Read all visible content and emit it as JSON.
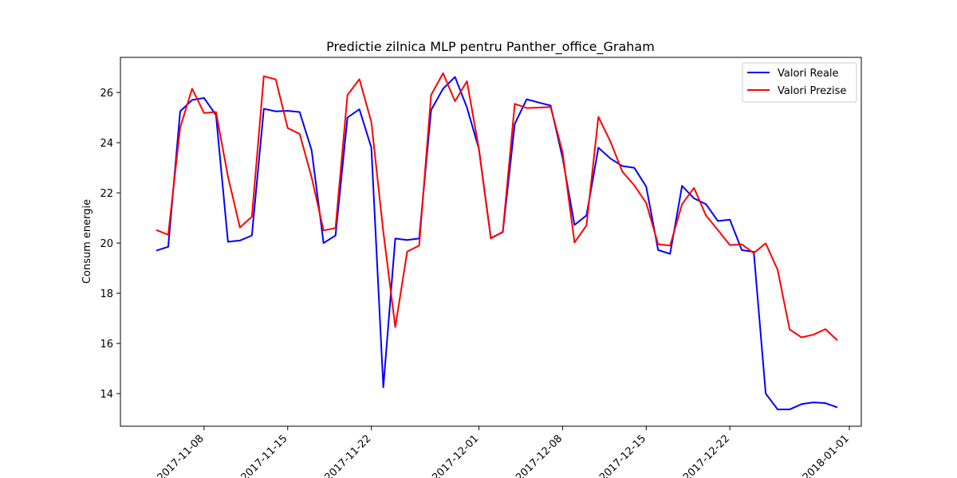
{
  "chart_data": {
    "type": "line",
    "title": "Predictie zilnica MLP pentru Panther_office_Graham",
    "xlabel": "",
    "ylabel": "Consum energie",
    "xlim": [
      "2017-11-01",
      "2018-01-02"
    ],
    "ylim": [
      12.7,
      27.4
    ],
    "x_ticks": [
      "2017-11-08",
      "2017-11-15",
      "2017-11-22",
      "2017-12-01",
      "2017-12-08",
      "2017-12-15",
      "2017-12-22",
      "2018-01-01"
    ],
    "y_ticks": [
      14,
      16,
      18,
      20,
      22,
      24,
      26
    ],
    "grid": false,
    "legend_position": "top-right",
    "x": [
      "2017-11-04",
      "2017-11-05",
      "2017-11-06",
      "2017-11-07",
      "2017-11-08",
      "2017-11-09",
      "2017-11-10",
      "2017-11-11",
      "2017-11-12",
      "2017-11-13",
      "2017-11-14",
      "2017-11-15",
      "2017-11-16",
      "2017-11-17",
      "2017-11-18",
      "2017-11-19",
      "2017-11-20",
      "2017-11-21",
      "2017-11-22",
      "2017-11-23",
      "2017-11-24",
      "2017-11-25",
      "2017-11-26",
      "2017-11-27",
      "2017-11-28",
      "2017-11-29",
      "2017-11-30",
      "2017-12-01",
      "2017-12-02",
      "2017-12-03",
      "2017-12-04",
      "2017-12-05",
      "2017-12-06",
      "2017-12-07",
      "2017-12-08",
      "2017-12-09",
      "2017-12-10",
      "2017-12-11",
      "2017-12-12",
      "2017-12-13",
      "2017-12-14",
      "2017-12-15",
      "2017-12-16",
      "2017-12-17",
      "2017-12-18",
      "2017-12-19",
      "2017-12-20",
      "2017-12-21",
      "2017-12-22",
      "2017-12-23",
      "2017-12-24",
      "2017-12-25",
      "2017-12-26",
      "2017-12-27",
      "2017-12-28",
      "2017-12-29",
      "2017-12-30",
      "2017-12-31"
    ],
    "series": [
      {
        "name": "Valori Reale",
        "color": "#0000ff",
        "values": [
          19.7,
          19.85,
          25.25,
          25.7,
          25.78,
          25.1,
          20.05,
          20.1,
          20.3,
          25.35,
          25.25,
          25.27,
          25.22,
          23.7,
          20.0,
          20.3,
          25.0,
          25.33,
          23.8,
          14.25,
          20.18,
          20.12,
          20.18,
          25.3,
          26.15,
          26.62,
          25.4,
          23.75,
          20.2,
          20.43,
          24.75,
          25.73,
          25.6,
          25.48,
          23.4,
          20.72,
          21.1,
          23.8,
          23.37,
          23.07,
          23.0,
          22.25,
          19.72,
          19.57,
          22.28,
          21.78,
          21.55,
          20.88,
          20.93,
          19.72,
          19.65,
          14.0,
          13.37,
          13.37,
          13.58,
          13.65,
          13.62,
          13.45
        ]
      },
      {
        "name": "Valori Prezise",
        "color": "#ff0000",
        "values": [
          20.52,
          20.33,
          24.6,
          26.15,
          25.18,
          25.22,
          22.65,
          20.62,
          21.05,
          26.65,
          26.52,
          24.58,
          24.35,
          22.62,
          20.5,
          20.6,
          25.9,
          26.53,
          24.82,
          20.45,
          16.65,
          19.66,
          19.9,
          25.9,
          26.77,
          25.65,
          26.45,
          23.75,
          20.18,
          20.45,
          25.55,
          25.38,
          25.4,
          25.42,
          23.62,
          20.02,
          20.7,
          25.03,
          24.05,
          22.85,
          22.3,
          21.6,
          19.95,
          19.9,
          21.55,
          22.2,
          21.1,
          20.52,
          19.92,
          19.95,
          19.6,
          19.99,
          18.93,
          16.56,
          16.24,
          16.35,
          16.57,
          16.12
        ]
      }
    ]
  }
}
